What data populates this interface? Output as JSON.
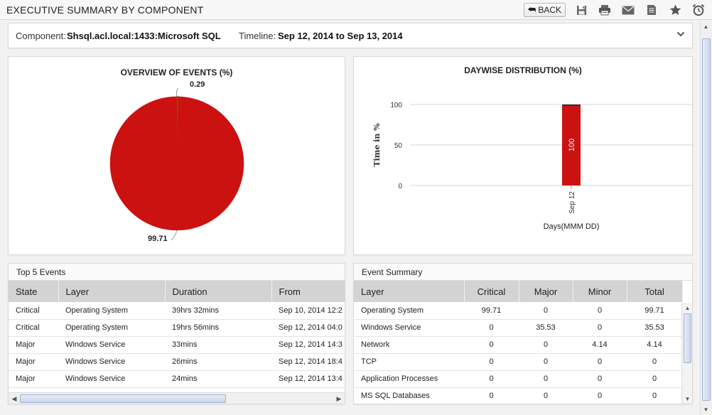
{
  "header": {
    "title": "EXECUTIVE SUMMARY BY COMPONENT",
    "back_label": "BACK",
    "icons": [
      "save-icon",
      "print-icon",
      "mail-icon",
      "report-icon",
      "star-icon",
      "alarm-clock-icon"
    ]
  },
  "filter": {
    "component_label": "Component:",
    "component_value": "Shsql.acl.local:1433:Microsoft SQL",
    "timeline_label": "Timeline:",
    "timeline_value": "Sep 12, 2014 to Sep 13, 2014"
  },
  "chart_data": [
    {
      "type": "pie",
      "title": "OVERVIEW OF EVENTS (%)",
      "slices": [
        {
          "label": "0.29",
          "value": 0.29,
          "color": "#2e8b2e"
        },
        {
          "label": "99.71",
          "value": 99.71,
          "color": "#cc1111"
        }
      ]
    },
    {
      "type": "bar",
      "title": "DAYWISE DISTRIBUTION (%)",
      "xlabel": "Days(MMM DD)",
      "ylabel": "Time in %",
      "categories": [
        "Sep 12"
      ],
      "series": [
        {
          "values": [
            100
          ],
          "color": "#cc1111",
          "data_labels": [
            "100"
          ]
        }
      ],
      "ylim": [
        0,
        100
      ],
      "yticks": [
        "0",
        "50",
        "100"
      ],
      "grid": true
    }
  ],
  "top_events": {
    "title": "Top 5 Events",
    "columns": [
      "State",
      "Layer",
      "Duration",
      "From"
    ],
    "rows": [
      [
        "Critical",
        "Operating System",
        "39hrs 32mins",
        "Sep 10, 2014 12:2"
      ],
      [
        "Critical",
        "Operating System",
        "19hrs 56mins",
        "Sep 12, 2014 04:0"
      ],
      [
        "Major",
        "Windows Service",
        "33mins",
        "Sep 12, 2014 14:3"
      ],
      [
        "Major",
        "Windows Service",
        "26mins",
        "Sep 12, 2014 18:4"
      ],
      [
        "Major",
        "Windows Service",
        "24mins",
        "Sep 12, 2014 13:4"
      ]
    ]
  },
  "event_summary": {
    "title": "Event Summary",
    "columns": [
      "Layer",
      "Critical",
      "Major",
      "Minor",
      "Total"
    ],
    "rows": [
      [
        "Operating System",
        "99.71",
        "0",
        "0",
        "99.71"
      ],
      [
        "Windows Service",
        "0",
        "35.53",
        "0",
        "35.53"
      ],
      [
        "Network",
        "0",
        "0",
        "4.14",
        "4.14"
      ],
      [
        "TCP",
        "0",
        "0",
        "0",
        "0"
      ],
      [
        "Application Processes",
        "0",
        "0",
        "0",
        "0"
      ],
      [
        "MS SQL Databases",
        "0",
        "0",
        "0",
        "0"
      ]
    ]
  },
  "colors": {
    "critical_red": "#cc1111",
    "minor_green": "#2e8b2e",
    "table_header_bg": "#d3d3d3"
  }
}
